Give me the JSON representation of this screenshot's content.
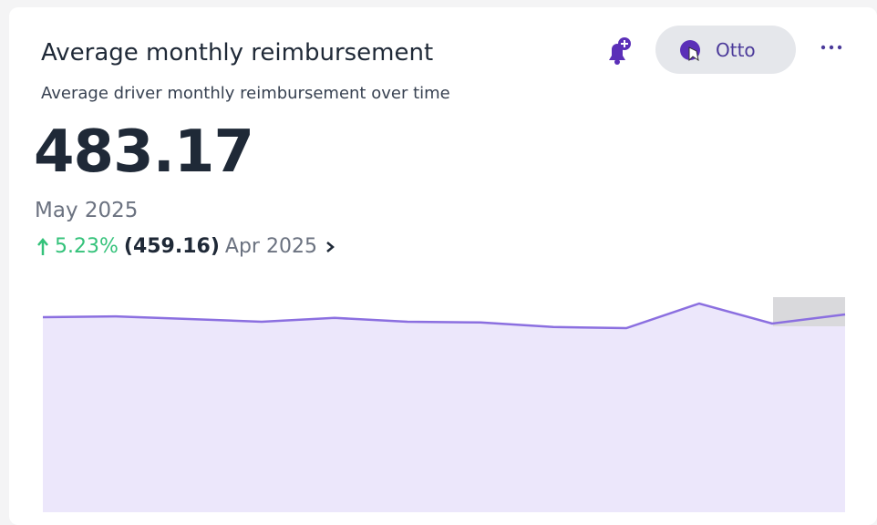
{
  "header": {
    "title": "Average monthly reimbursement",
    "subtitle": "Average driver monthly reimbursement over time",
    "user": "Otto"
  },
  "kpi": {
    "value": 483.17,
    "period": "May 2025",
    "change": "5.23%",
    "previous": "(459.16)",
    "previous_period": "Apr 2025"
  },
  "chart_data": {
    "type": "area",
    "color": "#8b6fe0",
    "fill": "#ece7fb",
    "values": [
      476,
      478,
      471,
      464,
      474,
      464,
      462,
      450,
      447,
      512,
      459.16,
      483.17
    ]
  }
}
